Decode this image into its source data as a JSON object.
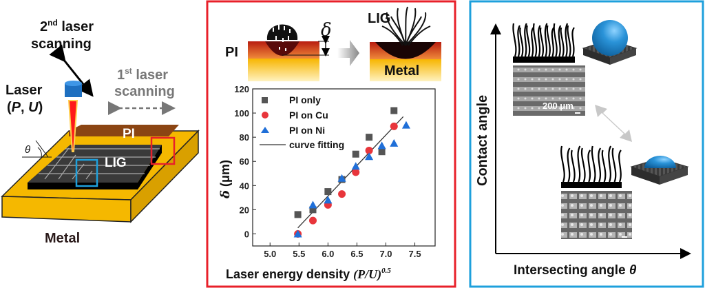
{
  "left_panel": {
    "second_scan": {
      "num": "2",
      "sup": "nd",
      "line1": " laser",
      "line2": "scanning"
    },
    "first_scan": {
      "num": "1",
      "sup": "st",
      "line1": " laser",
      "line2": "scanning"
    },
    "laser_label": "Laser",
    "laser_params": {
      "open": "(",
      "p": "P",
      "sep": ", ",
      "u": "U",
      "close": ")"
    },
    "pi_label": "PI",
    "lig_label": "LIG",
    "theta": "θ",
    "metal_label": "Metal"
  },
  "middle_panel": {
    "pi_label": "PI",
    "delta": "δ",
    "lig_label": "LIG",
    "metal_label": "Metal"
  },
  "right_panel": {
    "y_axis_label": "Contact angle",
    "x_axis_label": "Intersecting angle ",
    "x_axis_symbol": "θ",
    "scale_bar": "200 μm"
  },
  "colors": {
    "red_frame": "#e8202a",
    "blue_frame": "#1ea0dc",
    "pi_only": "#555555",
    "pi_on_cu": "#e8353b",
    "pi_on_ni": "#1f6fd8",
    "metal": "#f5b800",
    "pi": "#8b4513"
  },
  "chart_data": {
    "type": "scatter",
    "xlabel": "Laser energy density ",
    "xlabel_math": "(P/U)",
    "xlabel_exp": "0.5",
    "ylabel_symbol": "δ",
    "ylabel_unit": " (μm)",
    "xlim": [
      4.7,
      7.85
    ],
    "ylim": [
      -10,
      120
    ],
    "xticks": [
      "5.0",
      "5.5",
      "6.0",
      "6.5",
      "7.0",
      "7.5"
    ],
    "yticks": [
      "0",
      "20",
      "40",
      "60",
      "80",
      "100",
      "120"
    ],
    "legend_position": "top-left",
    "series": [
      {
        "name": "PI only",
        "marker": "square",
        "x": [
          5.48,
          5.74,
          6.0,
          6.24,
          6.48,
          6.71,
          6.93,
          7.14
        ],
        "y": [
          16,
          20,
          35,
          45,
          66,
          80,
          68,
          102
        ]
      },
      {
        "name": "PI on Cu",
        "marker": "circle",
        "x": [
          5.48,
          5.74,
          6.0,
          6.24,
          6.48,
          6.71,
          7.14
        ],
        "y": [
          0,
          11,
          24,
          33,
          51,
          69,
          89
        ]
      },
      {
        "name": "PI on Ni",
        "marker": "triangle",
        "x": [
          5.48,
          5.74,
          6.0,
          6.24,
          6.48,
          6.71,
          6.93,
          7.14,
          7.35
        ],
        "y": [
          0,
          24,
          28,
          46,
          56,
          64,
          73,
          75,
          90
        ]
      },
      {
        "name": "curve fitting",
        "marker": "line",
        "x": [
          5.48,
          7.3
        ],
        "y": [
          5,
          97
        ]
      }
    ]
  }
}
